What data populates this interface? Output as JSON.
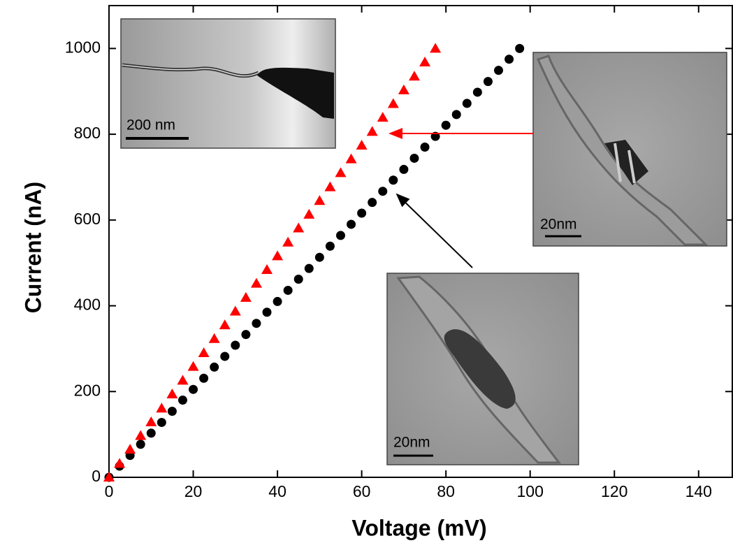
{
  "chart_data": {
    "type": "scatter",
    "xlabel": "Voltage (mV)",
    "ylabel": "Current (nA)",
    "xlim": [
      0,
      148
    ],
    "ylim": [
      0,
      1100
    ],
    "xticks": [
      0,
      20,
      40,
      60,
      80,
      100,
      120,
      140
    ],
    "yticks": [
      0,
      200,
      400,
      600,
      800,
      1000
    ],
    "annotations": [
      "200 nm",
      "20nm",
      "20nm"
    ],
    "series": [
      {
        "color": "#000000",
        "marker": "circle",
        "x": [
          0,
          2.5,
          5,
          7.5,
          10,
          12.5,
          15,
          17.5,
          20,
          22.5,
          25,
          27.5,
          30,
          32.5,
          35,
          37.5,
          40,
          42.5,
          45,
          47.5,
          50,
          52.5,
          55,
          57.5,
          60,
          62.5,
          65,
          67.5,
          70,
          72.5,
          75,
          77.5,
          80,
          82.5,
          85,
          87.5,
          90,
          92.5,
          95,
          97.5
        ],
        "values": [
          0,
          26,
          51,
          77,
          103,
          128,
          154,
          180,
          205,
          231,
          257,
          282,
          308,
          333,
          359,
          385,
          410,
          436,
          462,
          487,
          513,
          539,
          564,
          590,
          616,
          641,
          667,
          693,
          718,
          744,
          770,
          795,
          821,
          846,
          872,
          898,
          923,
          949,
          975,
          1000
        ]
      },
      {
        "color": "#ff0000",
        "marker": "triangle",
        "x": [
          0,
          2.5,
          5,
          7.5,
          10,
          12.5,
          15,
          17.5,
          20,
          22.5,
          25,
          27.5,
          30,
          32.5,
          35,
          37.5,
          40,
          42.5,
          45,
          47.5,
          50,
          52.5,
          55,
          57.5,
          60,
          62.5,
          65,
          67.5,
          70,
          72.5,
          75,
          77.5
        ],
        "values": [
          0,
          32,
          65,
          97,
          129,
          161,
          194,
          226,
          258,
          290,
          323,
          355,
          387,
          419,
          452,
          484,
          516,
          548,
          581,
          613,
          645,
          677,
          710,
          742,
          774,
          806,
          839,
          871,
          903,
          935,
          968,
          1000
        ]
      }
    ]
  }
}
